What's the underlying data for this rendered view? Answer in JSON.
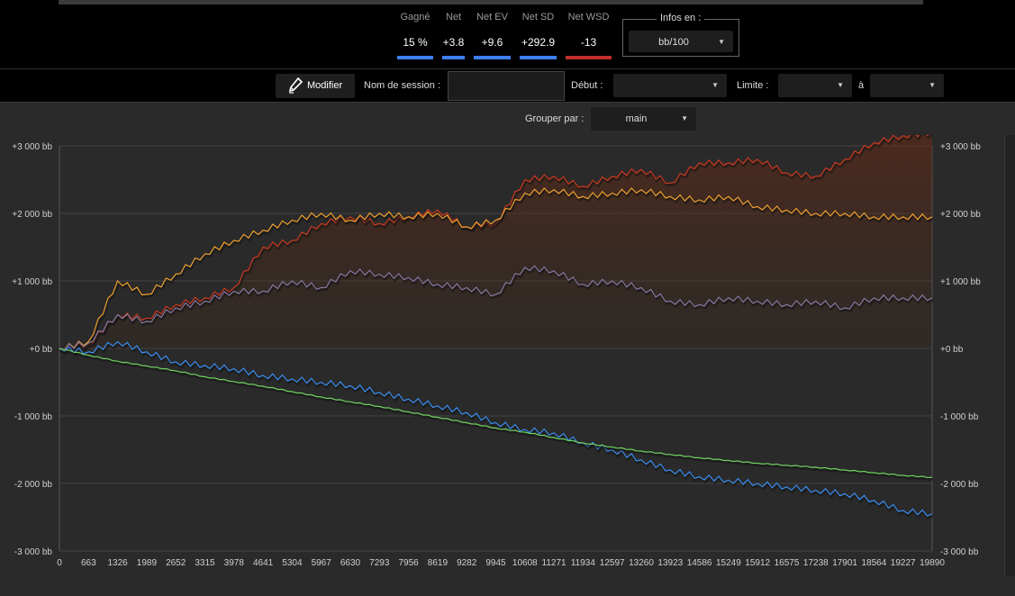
{
  "stats": [
    {
      "label": "Gagné",
      "value": "15 %",
      "color": "#3d7ef0"
    },
    {
      "label": "Net",
      "value": "+3.8",
      "color": "#3d7ef0"
    },
    {
      "label": "Net EV",
      "value": "+9.6",
      "color": "#3d7ef0"
    },
    {
      "label": "Net SD",
      "value": "+292.9",
      "color": "#3d7ef0"
    },
    {
      "label": "Net WSD",
      "value": "-13",
      "color": "#c0302a"
    }
  ],
  "infos": {
    "title": "Infos en :",
    "unit": "bb/100"
  },
  "toolbar": {
    "modify_label": "Modifier",
    "session_label": "Nom de session :",
    "session_value": "",
    "start_label": "Début :",
    "start_value": "",
    "limit_label": "Limite :",
    "limit_value": "",
    "to_label": "à",
    "to_value": ""
  },
  "group": {
    "label": "Grouper par :",
    "value": "main"
  },
  "chart_data": {
    "type": "line",
    "x_ticks": [
      0,
      663,
      1326,
      1989,
      2652,
      3315,
      3978,
      4641,
      5304,
      5967,
      6630,
      7293,
      7956,
      8619,
      9282,
      9945,
      10608,
      11271,
      11934,
      12597,
      13260,
      13923,
      14586,
      15249,
      15912,
      16575,
      17238,
      17901,
      18564,
      19227,
      19890
    ],
    "y_ticks": [
      -3000,
      -2000,
      -1000,
      0,
      1000,
      2000,
      3000
    ],
    "y_tick_labels": [
      "-3 000 bb",
      "-2 000 bb",
      "-1 000 bb",
      "+0 bb",
      "+1 000 bb",
      "+2 000 bb",
      "+3 000 bb"
    ],
    "ylim": [
      -3000,
      3000
    ],
    "xlim": [
      0,
      19890
    ],
    "grid": true,
    "series": [
      {
        "color": "#c83a24",
        "x": [
          0,
          663,
          1326,
          1989,
          2652,
          3315,
          3978,
          4641,
          5304,
          5967,
          6630,
          7293,
          7956,
          8619,
          9282,
          9945,
          10608,
          11271,
          11934,
          12597,
          13260,
          13923,
          14586,
          15249,
          15912,
          16575,
          17238,
          17901,
          18564,
          19227,
          19890
        ],
        "values": [
          0,
          50,
          500,
          450,
          650,
          750,
          900,
          1500,
          1600,
          1850,
          1950,
          1850,
          1950,
          2050,
          1800,
          1850,
          2500,
          2550,
          2400,
          2550,
          2650,
          2450,
          2750,
          2750,
          2800,
          2600,
          2550,
          2800,
          3050,
          3150,
          3200
        ]
      },
      {
        "color": "#f0a030",
        "x": [
          0,
          663,
          1326,
          1989,
          2652,
          3315,
          3978,
          4641,
          5304,
          5967,
          6630,
          7293,
          7956,
          8619,
          9282,
          9945,
          10608,
          11271,
          11934,
          12597,
          13260,
          13923,
          14586,
          15249,
          15912,
          16575,
          17238,
          17901,
          18564,
          19227,
          19890
        ],
        "values": [
          0,
          100,
          1000,
          800,
          1100,
          1400,
          1600,
          1750,
          1900,
          2000,
          1900,
          2000,
          1950,
          2000,
          1800,
          1900,
          2300,
          2350,
          2250,
          2300,
          2350,
          2250,
          2200,
          2250,
          2100,
          2050,
          2000,
          2000,
          1950,
          1950,
          1950
        ]
      },
      {
        "color": "#8878a0",
        "x": [
          0,
          663,
          1326,
          1989,
          2652,
          3315,
          3978,
          4641,
          5304,
          5967,
          6630,
          7293,
          7956,
          8619,
          9282,
          9945,
          10608,
          11271,
          11934,
          12597,
          13260,
          13923,
          14586,
          15249,
          15912,
          16575,
          17238,
          17901,
          18564,
          19227,
          19890
        ],
        "values": [
          0,
          80,
          500,
          400,
          600,
          700,
          850,
          850,
          1000,
          900,
          1150,
          1100,
          1050,
          950,
          900,
          800,
          1200,
          1150,
          950,
          1000,
          900,
          700,
          650,
          750,
          700,
          650,
          700,
          600,
          750,
          750,
          750
        ]
      },
      {
        "color": "#3a8ef0",
        "x": [
          0,
          663,
          1326,
          1989,
          2652,
          3315,
          3978,
          4641,
          5304,
          5967,
          6630,
          7293,
          7956,
          8619,
          9282,
          9945,
          10608,
          11271,
          11934,
          12597,
          13260,
          13923,
          14586,
          15249,
          15912,
          16575,
          17238,
          17901,
          18564,
          19227,
          19890
        ],
        "values": [
          0,
          -50,
          100,
          -50,
          -200,
          -250,
          -300,
          -400,
          -450,
          -500,
          -550,
          -650,
          -750,
          -850,
          -950,
          -1100,
          -1200,
          -1250,
          -1400,
          -1500,
          -1650,
          -1800,
          -1900,
          -1950,
          -2000,
          -2050,
          -2100,
          -2150,
          -2250,
          -2400,
          -2450
        ]
      },
      {
        "color": "#6fd060",
        "x": [
          0,
          663,
          1326,
          1989,
          2652,
          3315,
          3978,
          4641,
          5304,
          5967,
          6630,
          7293,
          7956,
          8619,
          9282,
          9945,
          10608,
          11271,
          11934,
          12597,
          13260,
          13923,
          14586,
          15249,
          15912,
          16575,
          17238,
          17901,
          18564,
          19227,
          19890
        ],
        "values": [
          0,
          -100,
          -190,
          -260,
          -330,
          -420,
          -490,
          -560,
          -640,
          -720,
          -790,
          -860,
          -940,
          -1020,
          -1100,
          -1180,
          -1240,
          -1320,
          -1400,
          -1460,
          -1520,
          -1570,
          -1620,
          -1660,
          -1700,
          -1730,
          -1760,
          -1800,
          -1840,
          -1880,
          -1910
        ]
      }
    ]
  }
}
